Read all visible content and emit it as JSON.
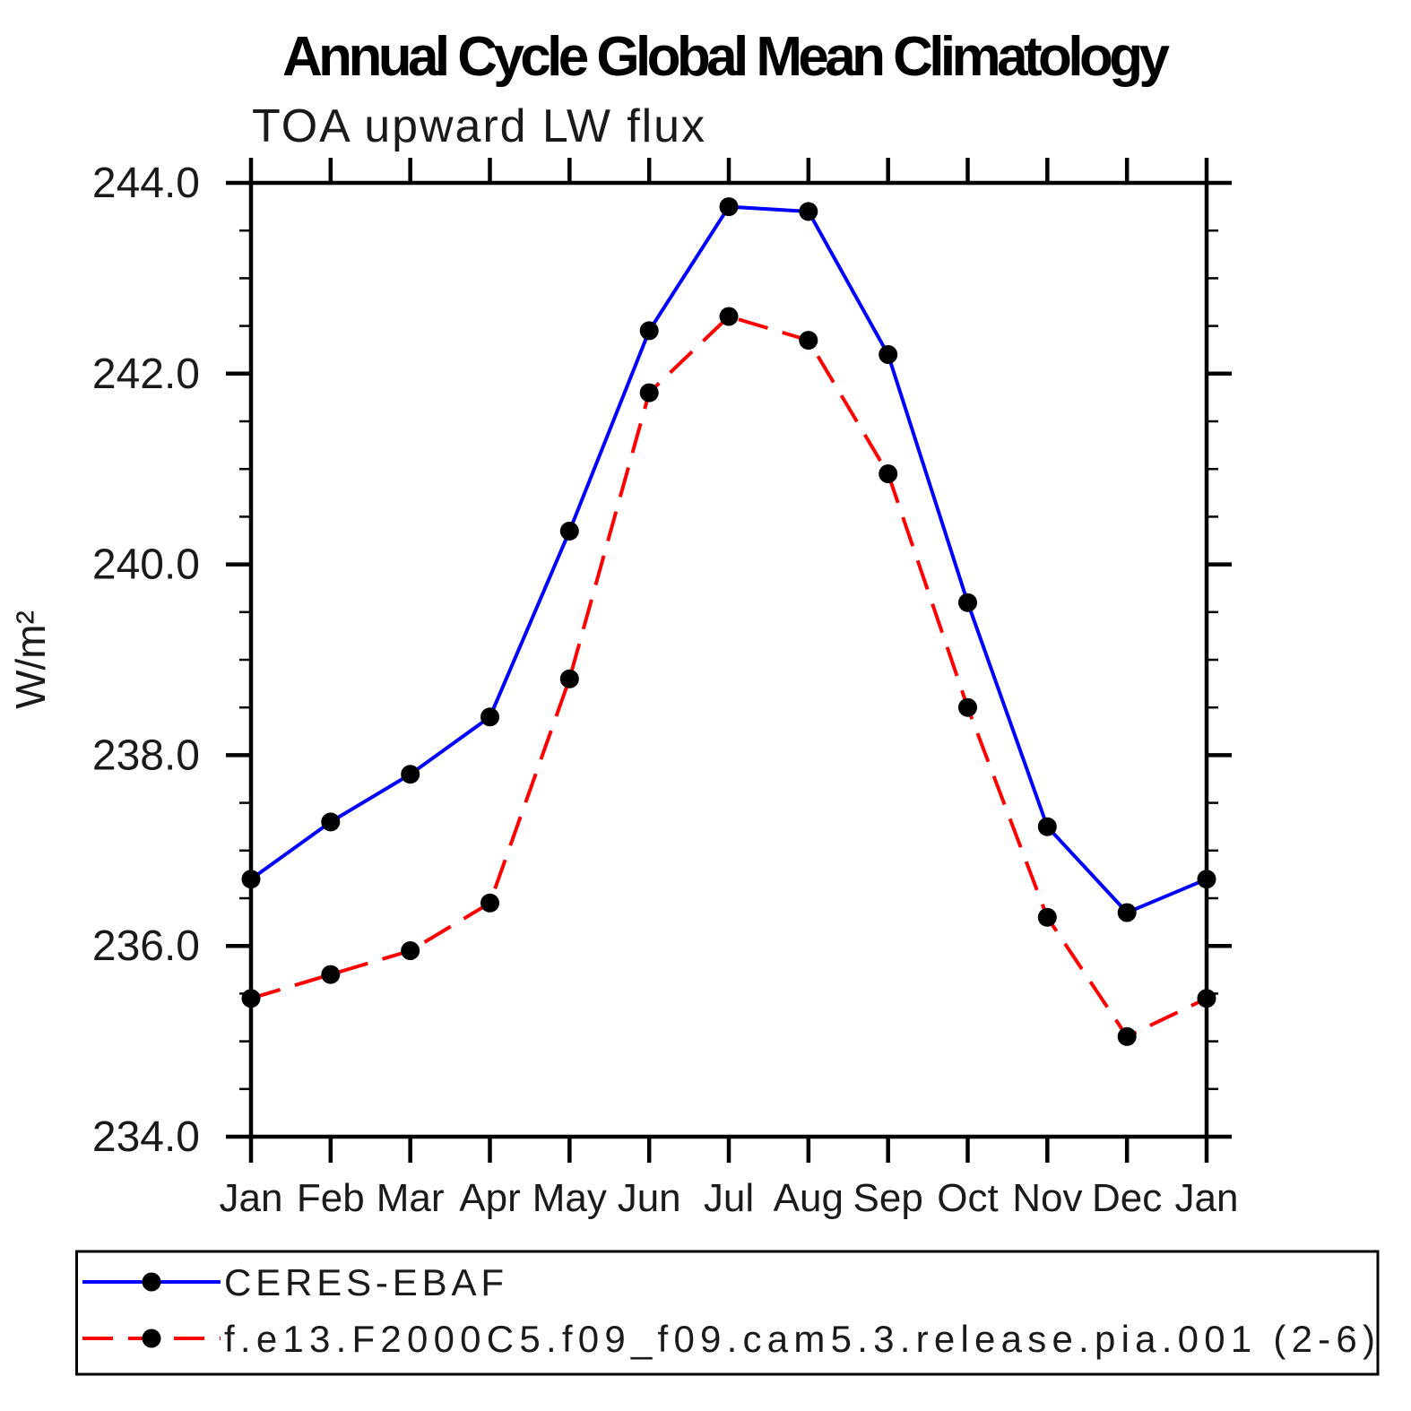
{
  "chart_data": {
    "type": "line",
    "title": "Annual Cycle Global Mean Climatology",
    "subtitle": "TOA upward LW flux",
    "ylabel": "W/m²",
    "xlabel": "",
    "categories": [
      "Jan",
      "Feb",
      "Mar",
      "Apr",
      "May",
      "Jun",
      "Jul",
      "Aug",
      "Sep",
      "Oct",
      "Nov",
      "Dec",
      "Jan"
    ],
    "ylim": [
      234.0,
      244.0
    ],
    "ytick_labels": [
      "234.0",
      "236.0",
      "238.0",
      "240.0",
      "242.0",
      "244.0"
    ],
    "ytick_major_interval": 2.0,
    "ytick_minor_interval": 0.5,
    "grid": false,
    "legend_position": "bottom",
    "series": [
      {
        "name": "CERES-EBAF",
        "color": "#0000ff",
        "style": "solid",
        "marker": "filled-circle",
        "marker_color": "#000000",
        "values": [
          236.7,
          237.3,
          237.8,
          238.4,
          240.35,
          242.45,
          243.75,
          243.7,
          242.2,
          239.6,
          237.25,
          236.35,
          236.7
        ]
      },
      {
        "name": "f.e13.F2000C5.f09_f09.cam5.3.release.pia.001 (2-6)",
        "color": "#ff0000",
        "style": "dashed",
        "marker": "filled-circle",
        "marker_color": "#000000",
        "values": [
          235.45,
          235.7,
          235.95,
          236.45,
          238.8,
          241.8,
          242.6,
          242.35,
          240.95,
          238.5,
          236.3,
          235.05,
          235.45
        ]
      }
    ]
  }
}
